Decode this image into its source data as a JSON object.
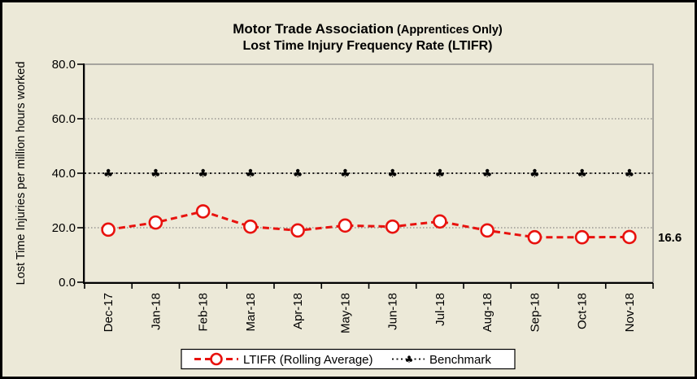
{
  "window": {
    "background_color": "#ece9d8",
    "frame_color": "#000000"
  },
  "title": {
    "line1_main": "Motor Trade Association",
    "line1_sub": " (Apprentices Only)",
    "line2": "Lost Time Injury Frequency Rate (LTIFR)"
  },
  "colors": {
    "ltifr_red": "#e8120e",
    "benchmark_black": "#000000",
    "plot_border_gray": "#808080",
    "background_beige": "#ece9d8",
    "legend_background": "#ffffff"
  },
  "chart_data": {
    "type": "line",
    "title": "Motor Trade Association (Apprentices Only) Lost Time Injury Frequency Rate (LTIFR)",
    "xlabel": "",
    "ylabel": "Lost Time Injuries per million hours worked",
    "ylim": [
      0,
      80
    ],
    "grid": "horizontal-dotted",
    "legend_position": "bottom-center",
    "yticks": [
      {
        "value": 0,
        "label": "0.0"
      },
      {
        "value": 20,
        "label": "20.0"
      },
      {
        "value": 40,
        "label": "40.0"
      },
      {
        "value": 60,
        "label": "60.0"
      },
      {
        "value": 80,
        "label": "80.0"
      }
    ],
    "categories": [
      "Dec-17",
      "Jan-18",
      "Feb-18",
      "Mar-18",
      "Apr-18",
      "May-18",
      "Jun-18",
      "Jul-18",
      "Aug-18",
      "Sep-18",
      "Oct-18",
      "Nov-18"
    ],
    "series": [
      {
        "name": "LTIFR (Rolling Average)",
        "type": "line",
        "line_style": "dashed",
        "color": "#e8120e",
        "marker": "open-circle",
        "marker_fill": "#ffffff",
        "values": [
          19.3,
          21.9,
          26.0,
          20.4,
          19.0,
          20.8,
          20.4,
          22.3,
          19.0,
          16.5,
          16.5,
          16.6
        ]
      },
      {
        "name": "Benchmark",
        "type": "line",
        "line_style": "dotted",
        "color": "#000000",
        "marker": "club",
        "marker_glyph": "♣",
        "values": [
          40,
          40,
          40,
          40,
          40,
          40,
          40,
          40,
          40,
          40,
          40,
          40
        ]
      }
    ],
    "annotations": [
      {
        "text": "16.6",
        "series": "LTIFR (Rolling Average)",
        "category": "Nov-18",
        "position": "right-of-last-point"
      }
    ]
  }
}
